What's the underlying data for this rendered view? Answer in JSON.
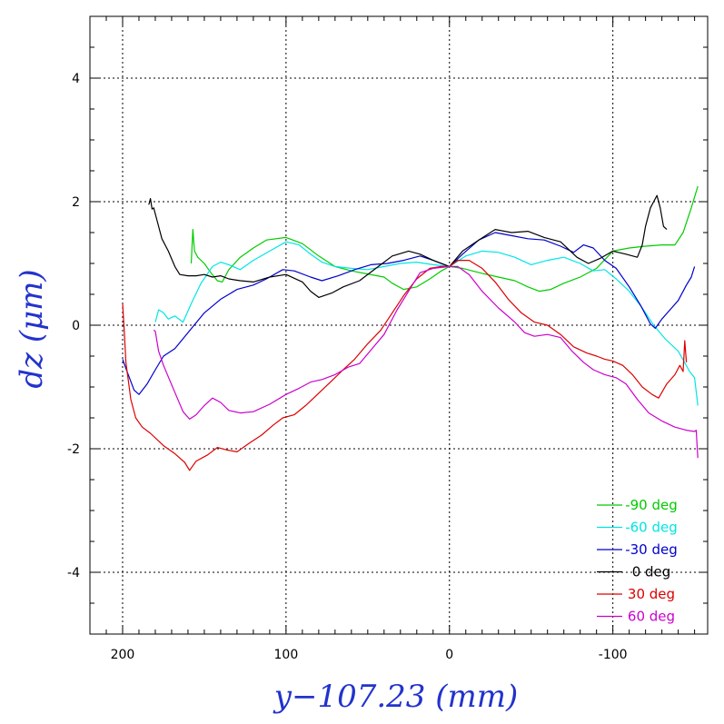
{
  "chart_data": {
    "type": "line",
    "xlabel": "y−107.23 (mm)",
    "ylabel": "dz (μm)",
    "xlim": [
      220,
      -158
    ],
    "ylim": [
      -5,
      5
    ],
    "x_reversed": true,
    "grid": true,
    "legend_position": "bottom-right",
    "xticks": [
      200,
      100,
      0,
      -100
    ],
    "yticks": [
      4,
      2,
      0,
      -2,
      -4
    ],
    "series": [
      {
        "name": "-90 deg",
        "color": "#00cc00",
        "points": [
          [
            158,
            1.0
          ],
          [
            157,
            1.55
          ],
          [
            156,
            1.2
          ],
          [
            154,
            1.1
          ],
          [
            150,
            1.0
          ],
          [
            146,
            0.85
          ],
          [
            142,
            0.72
          ],
          [
            139,
            0.7
          ],
          [
            135,
            0.9
          ],
          [
            128,
            1.1
          ],
          [
            120,
            1.25
          ],
          [
            112,
            1.38
          ],
          [
            100,
            1.42
          ],
          [
            90,
            1.32
          ],
          [
            80,
            1.12
          ],
          [
            70,
            0.95
          ],
          [
            60,
            0.88
          ],
          [
            50,
            0.83
          ],
          [
            40,
            0.78
          ],
          [
            35,
            0.68
          ],
          [
            28,
            0.58
          ],
          [
            20,
            0.62
          ],
          [
            12,
            0.75
          ],
          [
            5,
            0.88
          ],
          [
            0,
            0.95
          ],
          [
            -8,
            0.92
          ],
          [
            -20,
            0.84
          ],
          [
            -30,
            0.78
          ],
          [
            -40,
            0.72
          ],
          [
            -48,
            0.62
          ],
          [
            -55,
            0.55
          ],
          [
            -62,
            0.58
          ],
          [
            -70,
            0.68
          ],
          [
            -80,
            0.78
          ],
          [
            -90,
            0.92
          ],
          [
            -100,
            1.2
          ],
          [
            -110,
            1.25
          ],
          [
            -120,
            1.28
          ],
          [
            -130,
            1.3
          ],
          [
            -138,
            1.3
          ],
          [
            -143,
            1.5
          ],
          [
            -148,
            1.9
          ],
          [
            -152,
            2.25
          ]
        ]
      },
      {
        "name": "-60 deg",
        "color": "#00e5e5",
        "points": [
          [
            180,
            0.05
          ],
          [
            178,
            0.25
          ],
          [
            175,
            0.2
          ],
          [
            172,
            0.1
          ],
          [
            168,
            0.15
          ],
          [
            163,
            0.05
          ],
          [
            158,
            0.35
          ],
          [
            152,
            0.68
          ],
          [
            145,
            0.95
          ],
          [
            140,
            1.02
          ],
          [
            135,
            0.98
          ],
          [
            128,
            0.9
          ],
          [
            120,
            1.05
          ],
          [
            110,
            1.2
          ],
          [
            100,
            1.35
          ],
          [
            92,
            1.3
          ],
          [
            85,
            1.15
          ],
          [
            78,
            1.02
          ],
          [
            70,
            0.95
          ],
          [
            60,
            0.92
          ],
          [
            50,
            0.9
          ],
          [
            40,
            0.95
          ],
          [
            30,
            1.0
          ],
          [
            20,
            1.02
          ],
          [
            10,
            0.98
          ],
          [
            0,
            0.95
          ],
          [
            -10,
            1.12
          ],
          [
            -20,
            1.2
          ],
          [
            -30,
            1.18
          ],
          [
            -40,
            1.1
          ],
          [
            -50,
            0.98
          ],
          [
            -60,
            1.05
          ],
          [
            -70,
            1.1
          ],
          [
            -80,
            1.0
          ],
          [
            -88,
            0.88
          ],
          [
            -95,
            0.9
          ],
          [
            -102,
            0.75
          ],
          [
            -110,
            0.55
          ],
          [
            -118,
            0.28
          ],
          [
            -125,
            0.0
          ],
          [
            -132,
            -0.22
          ],
          [
            -140,
            -0.42
          ],
          [
            -147,
            -0.75
          ],
          [
            -150,
            -0.85
          ],
          [
            -152,
            -1.3
          ]
        ]
      },
      {
        "name": "-30 deg",
        "color": "#0000cc",
        "points": [
          [
            200,
            -0.55
          ],
          [
            198,
            -0.7
          ],
          [
            193,
            -1.05
          ],
          [
            190,
            -1.12
          ],
          [
            185,
            -0.95
          ],
          [
            180,
            -0.72
          ],
          [
            175,
            -0.5
          ],
          [
            168,
            -0.38
          ],
          [
            160,
            -0.12
          ],
          [
            150,
            0.2
          ],
          [
            140,
            0.42
          ],
          [
            130,
            0.58
          ],
          [
            120,
            0.65
          ],
          [
            112,
            0.75
          ],
          [
            102,
            0.9
          ],
          [
            95,
            0.88
          ],
          [
            85,
            0.78
          ],
          [
            78,
            0.72
          ],
          [
            68,
            0.8
          ],
          [
            58,
            0.9
          ],
          [
            48,
            0.98
          ],
          [
            38,
            1.0
          ],
          [
            28,
            1.05
          ],
          [
            18,
            1.12
          ],
          [
            10,
            1.05
          ],
          [
            0,
            0.95
          ],
          [
            -8,
            1.15
          ],
          [
            -18,
            1.38
          ],
          [
            -28,
            1.5
          ],
          [
            -38,
            1.45
          ],
          [
            -48,
            1.4
          ],
          [
            -58,
            1.38
          ],
          [
            -68,
            1.28
          ],
          [
            -76,
            1.18
          ],
          [
            -82,
            1.3
          ],
          [
            -88,
            1.25
          ],
          [
            -95,
            1.05
          ],
          [
            -102,
            0.92
          ],
          [
            -110,
            0.62
          ],
          [
            -117,
            0.32
          ],
          [
            -123,
            0.02
          ],
          [
            -126,
            -0.05
          ],
          [
            -130,
            0.1
          ],
          [
            -135,
            0.25
          ],
          [
            -140,
            0.4
          ],
          [
            -145,
            0.65
          ],
          [
            -148,
            0.78
          ],
          [
            -150,
            0.95
          ]
        ]
      },
      {
        "name": "0 deg",
        "color": "#000000",
        "points": [
          [
            184,
            1.95
          ],
          [
            183,
            2.05
          ],
          [
            182,
            1.88
          ],
          [
            181,
            1.9
          ],
          [
            179,
            1.7
          ],
          [
            176,
            1.4
          ],
          [
            172,
            1.2
          ],
          [
            168,
            0.95
          ],
          [
            165,
            0.82
          ],
          [
            160,
            0.8
          ],
          [
            155,
            0.8
          ],
          [
            150,
            0.82
          ],
          [
            145,
            0.78
          ],
          [
            140,
            0.8
          ],
          [
            135,
            0.75
          ],
          [
            128,
            0.72
          ],
          [
            120,
            0.7
          ],
          [
            110,
            0.78
          ],
          [
            100,
            0.82
          ],
          [
            90,
            0.7
          ],
          [
            85,
            0.55
          ],
          [
            80,
            0.45
          ],
          [
            72,
            0.52
          ],
          [
            65,
            0.62
          ],
          [
            55,
            0.72
          ],
          [
            45,
            0.92
          ],
          [
            35,
            1.12
          ],
          [
            25,
            1.2
          ],
          [
            18,
            1.15
          ],
          [
            10,
            1.05
          ],
          [
            0,
            0.95
          ],
          [
            -8,
            1.2
          ],
          [
            -18,
            1.38
          ],
          [
            -28,
            1.55
          ],
          [
            -38,
            1.5
          ],
          [
            -48,
            1.52
          ],
          [
            -58,
            1.42
          ],
          [
            -68,
            1.35
          ],
          [
            -78,
            1.1
          ],
          [
            -85,
            1.0
          ],
          [
            -92,
            1.08
          ],
          [
            -100,
            1.2
          ],
          [
            -108,
            1.15
          ],
          [
            -115,
            1.1
          ],
          [
            -118,
            1.3
          ],
          [
            -120,
            1.6
          ],
          [
            -123,
            1.9
          ],
          [
            -125,
            2.0
          ],
          [
            -127,
            2.1
          ],
          [
            -129,
            1.9
          ],
          [
            -131,
            1.6
          ],
          [
            -133,
            1.55
          ]
        ]
      },
      {
        "name": "30 deg",
        "color": "#dd0000",
        "points": [
          [
            200,
            0.35
          ],
          [
            199,
            -0.1
          ],
          [
            198,
            -0.6
          ],
          [
            195,
            -1.2
          ],
          [
            192,
            -1.5
          ],
          [
            188,
            -1.65
          ],
          [
            183,
            -1.75
          ],
          [
            175,
            -1.95
          ],
          [
            168,
            -2.08
          ],
          [
            162,
            -2.22
          ],
          [
            159,
            -2.35
          ],
          [
            155,
            -2.2
          ],
          [
            148,
            -2.1
          ],
          [
            142,
            -1.98
          ],
          [
            136,
            -2.02
          ],
          [
            130,
            -2.05
          ],
          [
            122,
            -1.9
          ],
          [
            115,
            -1.78
          ],
          [
            108,
            -1.62
          ],
          [
            102,
            -1.5
          ],
          [
            95,
            -1.45
          ],
          [
            88,
            -1.3
          ],
          [
            80,
            -1.1
          ],
          [
            72,
            -0.9
          ],
          [
            65,
            -0.72
          ],
          [
            58,
            -0.55
          ],
          [
            50,
            -0.3
          ],
          [
            42,
            -0.08
          ],
          [
            35,
            0.2
          ],
          [
            28,
            0.48
          ],
          [
            20,
            0.75
          ],
          [
            12,
            0.92
          ],
          [
            5,
            0.95
          ],
          [
            0,
            0.95
          ],
          [
            -5,
            1.05
          ],
          [
            -12,
            1.05
          ],
          [
            -20,
            0.92
          ],
          [
            -28,
            0.7
          ],
          [
            -36,
            0.42
          ],
          [
            -44,
            0.2
          ],
          [
            -52,
            0.05
          ],
          [
            -60,
            0.0
          ],
          [
            -68,
            -0.15
          ],
          [
            -76,
            -0.35
          ],
          [
            -84,
            -0.45
          ],
          [
            -90,
            -0.5
          ],
          [
            -95,
            -0.55
          ],
          [
            -100,
            -0.58
          ],
          [
            -106,
            -0.65
          ],
          [
            -112,
            -0.8
          ],
          [
            -118,
            -1.0
          ],
          [
            -124,
            -1.12
          ],
          [
            -128,
            -1.18
          ],
          [
            -133,
            -0.95
          ],
          [
            -138,
            -0.8
          ],
          [
            -141,
            -0.65
          ],
          [
            -143,
            -0.75
          ],
          [
            -144,
            -0.25
          ],
          [
            -145,
            -0.6
          ]
        ]
      },
      {
        "name": "60 deg",
        "color": "#cc00cc",
        "points": [
          [
            181,
            -0.08
          ],
          [
            180,
            -0.1
          ],
          [
            178,
            -0.42
          ],
          [
            175,
            -0.65
          ],
          [
            171,
            -0.9
          ],
          [
            167,
            -1.15
          ],
          [
            163,
            -1.4
          ],
          [
            159,
            -1.52
          ],
          [
            155,
            -1.45
          ],
          [
            150,
            -1.3
          ],
          [
            145,
            -1.18
          ],
          [
            140,
            -1.25
          ],
          [
            135,
            -1.38
          ],
          [
            128,
            -1.42
          ],
          [
            120,
            -1.4
          ],
          [
            110,
            -1.28
          ],
          [
            100,
            -1.12
          ],
          [
            92,
            -1.02
          ],
          [
            85,
            -0.92
          ],
          [
            78,
            -0.88
          ],
          [
            70,
            -0.8
          ],
          [
            62,
            -0.68
          ],
          [
            55,
            -0.62
          ],
          [
            48,
            -0.4
          ],
          [
            40,
            -0.15
          ],
          [
            32,
            0.25
          ],
          [
            25,
            0.55
          ],
          [
            18,
            0.85
          ],
          [
            10,
            0.92
          ],
          [
            0,
            0.95
          ],
          [
            -5,
            0.95
          ],
          [
            -12,
            0.82
          ],
          [
            -20,
            0.55
          ],
          [
            -30,
            0.28
          ],
          [
            -40,
            0.05
          ],
          [
            -46,
            -0.12
          ],
          [
            -52,
            -0.18
          ],
          [
            -60,
            -0.15
          ],
          [
            -68,
            -0.2
          ],
          [
            -75,
            -0.42
          ],
          [
            -82,
            -0.6
          ],
          [
            -88,
            -0.72
          ],
          [
            -95,
            -0.8
          ],
          [
            -102,
            -0.85
          ],
          [
            -108,
            -0.95
          ],
          [
            -115,
            -1.2
          ],
          [
            -122,
            -1.42
          ],
          [
            -130,
            -1.55
          ],
          [
            -138,
            -1.65
          ],
          [
            -145,
            -1.7
          ],
          [
            -150,
            -1.72
          ],
          [
            -151,
            -1.7
          ],
          [
            -152,
            -2.15
          ]
        ]
      }
    ]
  }
}
